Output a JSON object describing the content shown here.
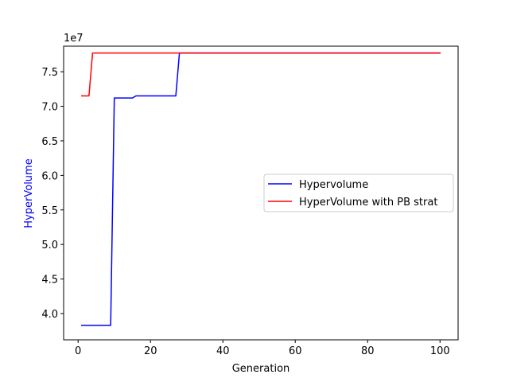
{
  "chart_data": {
    "type": "line",
    "title": "",
    "xlabel": "Generation",
    "ylabel": "HyperVolume",
    "y_offset_label": "1e7",
    "xlim": [
      -4,
      105
    ],
    "ylim": [
      36.2,
      78.7
    ],
    "y_scale_note": "y values in units of 1e6 (tick labels shown ×1e7)",
    "x_ticks": [
      0,
      20,
      40,
      60,
      80,
      100
    ],
    "x_tick_labels": [
      "0",
      "20",
      "40",
      "60",
      "80",
      "100"
    ],
    "y_ticks": [
      40,
      45,
      50,
      55,
      60,
      65,
      70,
      75
    ],
    "y_tick_labels": [
      "4.0",
      "4.5",
      "5.0",
      "5.5",
      "6.0",
      "6.5",
      "7.0",
      "7.5"
    ],
    "legend_placement": "center-right",
    "series": [
      {
        "name": "Hypervolume",
        "color": "#0000ff",
        "x": [
          1,
          9,
          10,
          15,
          16,
          27,
          28,
          100
        ],
        "y": [
          38.3,
          38.3,
          71.2,
          71.2,
          71.5,
          71.5,
          77.7,
          77.7
        ]
      },
      {
        "name": "HyperVolume with PB strat",
        "color": "#ff0000",
        "x": [
          1,
          3,
          4,
          100
        ],
        "y": [
          71.5,
          71.5,
          77.7,
          77.7
        ]
      }
    ]
  }
}
